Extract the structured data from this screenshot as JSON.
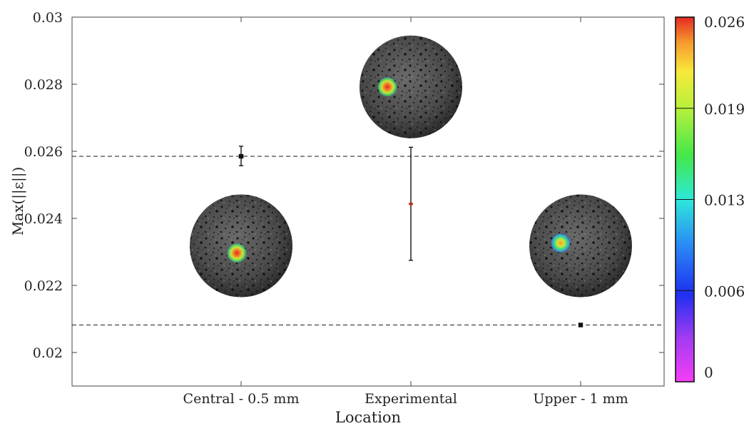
{
  "chart_data": {
    "type": "scatter",
    "xlabel": "Location",
    "ylabel": "Max(||ε||)",
    "ylim": [
      0.019,
      0.03
    ],
    "yticks": [
      "0.02",
      "0.022",
      "0.024",
      "0.026",
      "0.028",
      "0.03"
    ],
    "ytick_values": [
      0.02,
      0.022,
      0.024,
      0.026,
      0.028,
      0.03
    ],
    "categories": [
      "Central - 0.5 mm",
      "Experimental",
      "Upper - 1 mm"
    ],
    "points": [
      {
        "category": "Central - 0.5 mm",
        "value": 0.02585,
        "err_low": 0.02557,
        "err_high": 0.02615,
        "marker": "square",
        "color": "#111111"
      },
      {
        "category": "Experimental",
        "value": 0.02443,
        "err_low": 0.02275,
        "err_high": 0.02612,
        "marker": "diamond",
        "color": "#b5331e"
      },
      {
        "category": "Upper - 1 mm",
        "value": 0.02082,
        "err_low": 0.02082,
        "err_high": 0.02082,
        "marker": "square",
        "color": "#111111"
      }
    ],
    "reference_lines": [
      0.02585,
      0.02082
    ],
    "grid": false,
    "sphere_insets": [
      {
        "category": "Central - 0.5 mm",
        "center_value": 0.02318,
        "spot": "high"
      },
      {
        "category": "Experimental",
        "center_value": 0.02792,
        "spot": "high"
      },
      {
        "category": "Upper - 1 mm",
        "center_value": 0.02318,
        "spot": "mid"
      }
    ],
    "colorbar": {
      "min": 0,
      "max": 0.026,
      "tick_labels": [
        "0",
        "0.006",
        "0.013",
        "0.019",
        "0.026"
      ],
      "tick_values": [
        0,
        0.0065,
        0.013,
        0.0195,
        0.026
      ],
      "colormap": "jet-like (magenta to red)"
    }
  }
}
